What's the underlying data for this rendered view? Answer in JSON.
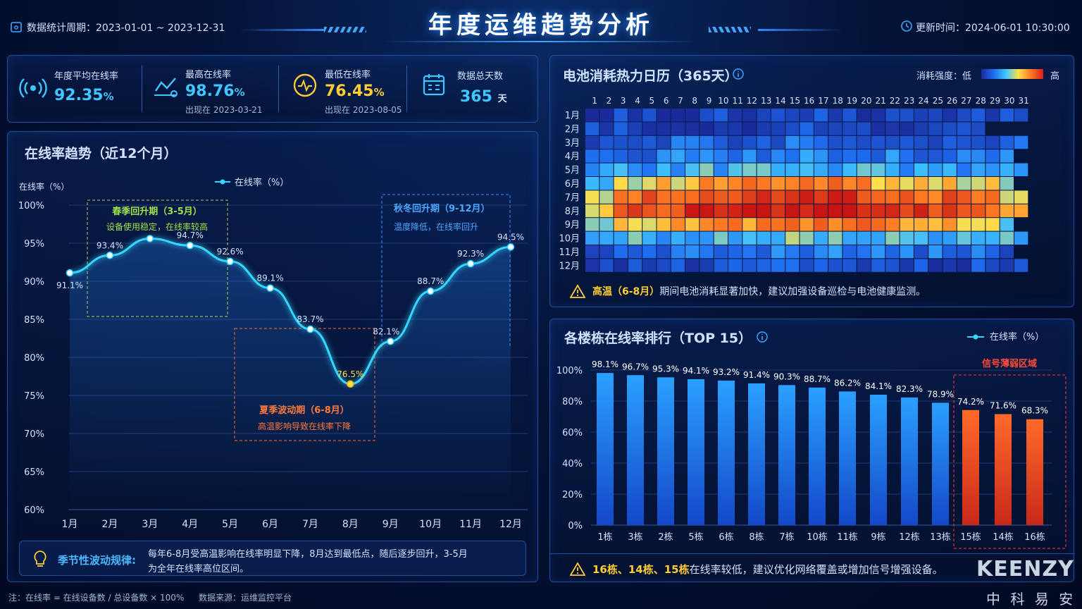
{
  "header": {
    "period": "数据统计周期：2023-01-01 ~ 2023-12-31",
    "title": "年度运维趋势分析",
    "updated": "更新时间：2024-06-01 10:30:00"
  },
  "kpis": [
    {
      "label": "年度平均在线率",
      "value": "92.35",
      "unit": "%",
      "sub": ""
    },
    {
      "label": "最高在线率",
      "value": "98.76",
      "unit": "%",
      "sub": "出现在 2023-03-21"
    },
    {
      "label": "最低在线率",
      "value": "76.45",
      "unit": "%",
      "sub": "出现在 2023-08-05"
    },
    {
      "label": "数据总天数",
      "value": "365",
      "unit": "天",
      "sub": ""
    }
  ],
  "trend": {
    "title": "在线率趋势（近12个月）",
    "ylabel": "在线率（%）",
    "legend": "在线率（%）",
    "annotations": {
      "spring": {
        "title": "春季回升期（3-5月）",
        "desc": "设备使用稳定，在线率较高"
      },
      "summer": {
        "title": "夏季波动期（6-8月）",
        "desc": "高温影响导致在线率下降"
      },
      "autumn": {
        "title": "秋冬回升期（9-12月）",
        "desc": "温度降低，在线率回升"
      }
    },
    "note_title": "季节性波动规律:",
    "note_line1": "每年6-8月受高温影响在线率明显下降，8月达到最低点，随后逐步回升，3-5月",
    "note_line2": "为全年在线率高位区间。"
  },
  "heatmap": {
    "title": "电池消耗热力日历（365天）",
    "legend_label": "消耗强度：低",
    "legend_high": "高",
    "alert_bold": "高温（6-8月）",
    "alert_text": "期间电池消耗显著加快，建议加强设备巡检与电池健康监测。"
  },
  "ranking": {
    "title": "各楼栋在线率排行（TOP 15）",
    "legend": "在线率（%）",
    "weak_label": "信号薄弱区域",
    "alert_bold": "16栋、14栋、15栋",
    "alert_text": "在线率较低，建议优化网络覆盖或增加信号增强设备。"
  },
  "footer": {
    "formula": "注：在线率 = 在线设备数 / 总设备数 × 100%",
    "source": "数据来源：运维监控平台",
    "brand_en": "KEENZY",
    "brand_cn": "中 科 易 安"
  },
  "chart_data": [
    {
      "type": "line",
      "title": "在线率趋势（近12个月）",
      "ylabel": "在线率（%）",
      "categories": [
        "1月",
        "2月",
        "3月",
        "4月",
        "5月",
        "6月",
        "7月",
        "8月",
        "9月",
        "10月",
        "11月",
        "12月"
      ],
      "series": [
        {
          "name": "在线率（%）",
          "values": [
            91.1,
            93.4,
            95.6,
            94.7,
            92.6,
            89.1,
            83.7,
            76.5,
            82.1,
            88.7,
            92.3,
            94.5
          ]
        }
      ],
      "value_labels": [
        "91.1%",
        "93.4%",
        "",
        "94.7%",
        "92.6%",
        "89.1%",
        "83.7%",
        "76.5%",
        "82.1%",
        "88.7%",
        "92.3%",
        "94.5%"
      ],
      "yticks": [
        "60%",
        "65%",
        "70%",
        "75%",
        "80%",
        "85%",
        "90%",
        "95%",
        "100%"
      ],
      "ylim": [
        60,
        100
      ],
      "color": "#35d6ff"
    },
    {
      "type": "heatmap",
      "title": "电池消耗热力日历（365天）",
      "days": [
        "1",
        "2",
        "3",
        "4",
        "5",
        "6",
        "7",
        "8",
        "9",
        "10",
        "11",
        "12",
        "13",
        "14",
        "15",
        "16",
        "17",
        "18",
        "19",
        "20",
        "21",
        "22",
        "23",
        "24",
        "25",
        "26",
        "27",
        "28",
        "29",
        "30",
        "31"
      ],
      "months": [
        "1月",
        "2月",
        "3月",
        "4月",
        "5月",
        "6月",
        "7月",
        "8月",
        "9月",
        "10月",
        "11月",
        "12月"
      ],
      "month_days": [
        31,
        28,
        31,
        30,
        31,
        30,
        31,
        31,
        30,
        31,
        30,
        31
      ],
      "intensity_scale": [
        0,
        1
      ]
    },
    {
      "type": "bar",
      "title": "各楼栋在线率排行（TOP 15）",
      "categories": [
        "1栋",
        "3栋",
        "2栋",
        "5栋",
        "6栋",
        "8栋",
        "7栋",
        "10栋",
        "11栋",
        "9栋",
        "12栋",
        "13栋",
        "15栋",
        "14栋",
        "16栋"
      ],
      "values": [
        98.1,
        96.7,
        95.3,
        94.1,
        93.2,
        91.4,
        90.3,
        88.7,
        86.2,
        84.1,
        82.3,
        78.9,
        74.2,
        71.6,
        68.3
      ],
      "value_labels": [
        "98.1%",
        "96.7%",
        "95.3%",
        "94.1%",
        "93.2%",
        "91.4%",
        "90.3%",
        "88.7%",
        "86.2%",
        "84.1%",
        "82.3%",
        "78.9%",
        "74.2%",
        "71.6%",
        "68.3%"
      ],
      "yticks": [
        "0%",
        "20%",
        "40%",
        "60%",
        "80%",
        "100%"
      ],
      "ylim": [
        0,
        100
      ],
      "highlight": [
        "15栋",
        "14栋",
        "16栋"
      ],
      "colors": {
        "normal": "#1e8cff",
        "weak": "#ff5a2a"
      }
    }
  ]
}
